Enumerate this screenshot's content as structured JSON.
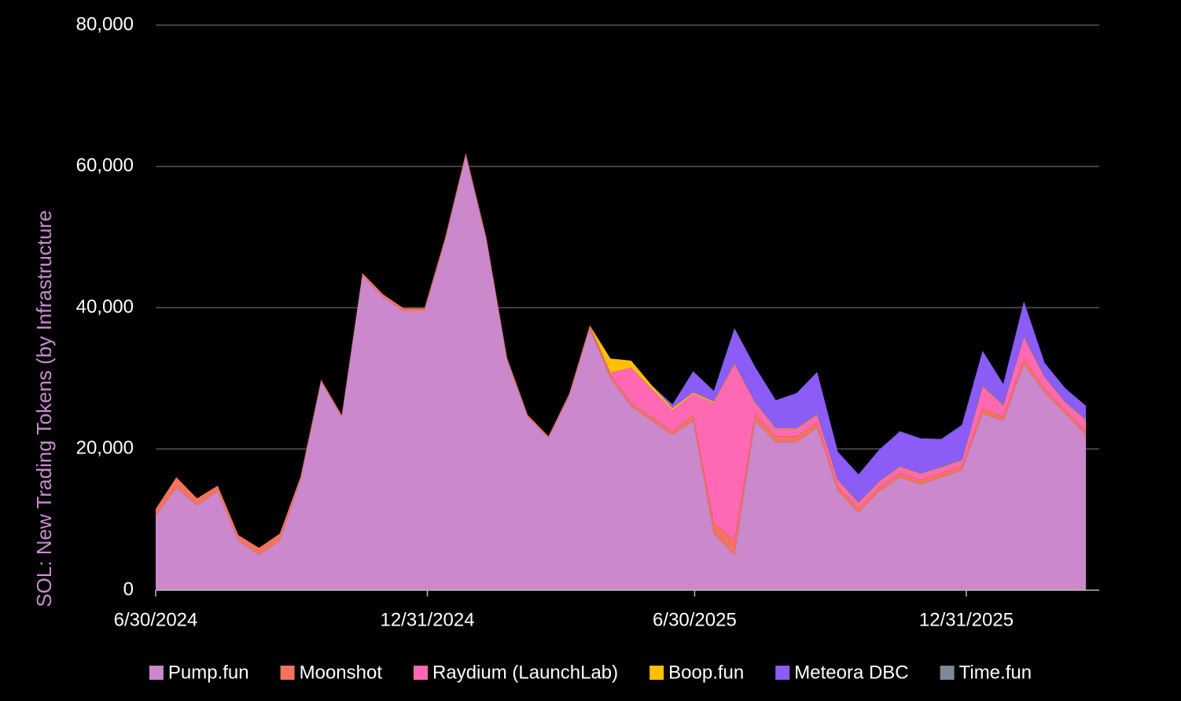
{
  "chart_data": {
    "type": "stacked-area",
    "y_label": "SOL: New Trading Tokens (by Infrastructure",
    "x": [
      "2024-06-30",
      "2024-07-14",
      "2024-07-28",
      "2024-08-11",
      "2024-08-25",
      "2024-09-08",
      "2024-09-22",
      "2024-10-06",
      "2024-10-20",
      "2024-11-03",
      "2024-11-17",
      "2024-12-01",
      "2024-12-15",
      "2024-12-29",
      "2025-01-12",
      "2025-01-26",
      "2025-02-09",
      "2025-02-23",
      "2025-03-09",
      "2025-03-23",
      "2025-04-06",
      "2025-04-20",
      "2025-05-04",
      "2025-05-18",
      "2025-06-01",
      "2025-06-15",
      "2025-06-29",
      "2025-07-13",
      "2025-07-27",
      "2025-08-10",
      "2025-08-24",
      "2025-09-07",
      "2025-09-21",
      "2025-10-05",
      "2025-10-19",
      "2025-11-02",
      "2025-11-16",
      "2025-11-30",
      "2025-12-14",
      "2025-12-28",
      "2026-01-11",
      "2026-01-25",
      "2026-02-08",
      "2026-02-22",
      "2026-03-08",
      "2026-03-22"
    ],
    "series": [
      {
        "name": "Pump.fun",
        "color": "#cc88cc",
        "values": [
          10500,
          14500,
          12000,
          14000,
          7000,
          5000,
          7000,
          15500,
          29500,
          24500,
          44500,
          41500,
          39500,
          39500,
          49500,
          61500,
          49500,
          32500,
          24500,
          21500,
          27500,
          37000,
          30000,
          26000,
          24000,
          22000,
          24000,
          8000,
          5000,
          24000,
          21000,
          21000,
          23000,
          14000,
          11000,
          14000,
          16000,
          15000,
          16000,
          17000,
          25000,
          24000,
          32000,
          28000,
          25000,
          22000
        ]
      },
      {
        "name": "Moonshot",
        "color": "#f4735e",
        "values": [
          1000,
          1500,
          1000,
          800,
          800,
          1000,
          1000,
          500,
          300,
          300,
          400,
          400,
          400,
          400,
          400,
          400,
          400,
          400,
          300,
          300,
          300,
          500,
          500,
          500,
          500,
          500,
          800,
          1500,
          2000,
          1000,
          800,
          800,
          800,
          700,
          600,
          600,
          600,
          600,
          600,
          600,
          800,
          600,
          800,
          600,
          500,
          500
        ]
      },
      {
        "name": "Raydium (LaunchLab)",
        "color": "#ff69b4",
        "values": [
          0,
          0,
          0,
          0,
          0,
          0,
          0,
          0,
          0,
          0,
          0,
          0,
          0,
          0,
          0,
          0,
          0,
          0,
          0,
          0,
          0,
          0,
          300,
          5000,
          4000,
          3000,
          3000,
          17000,
          25000,
          1500,
          1000,
          1000,
          1000,
          800,
          700,
          700,
          800,
          800,
          700,
          700,
          3000,
          1500,
          3000,
          1500,
          1000,
          1500
        ]
      },
      {
        "name": "Boop.fun",
        "color": "#ffc000",
        "values": [
          0,
          0,
          0,
          0,
          0,
          0,
          0,
          0,
          0,
          0,
          0,
          0,
          0,
          0,
          0,
          0,
          0,
          0,
          0,
          0,
          0,
          0,
          2000,
          1000,
          500,
          300,
          200,
          200,
          100,
          100,
          100,
          100,
          100,
          100,
          100,
          100,
          100,
          100,
          100,
          100,
          100,
          100,
          100,
          100,
          100,
          100
        ]
      },
      {
        "name": "Meteora DBC",
        "color": "#8b5cf6",
        "values": [
          0,
          0,
          0,
          0,
          0,
          0,
          0,
          0,
          0,
          0,
          0,
          0,
          0,
          0,
          0,
          0,
          0,
          0,
          0,
          0,
          0,
          0,
          0,
          0,
          0,
          500,
          3000,
          1500,
          5000,
          5000,
          4000,
          5000,
          6000,
          4000,
          4000,
          4500,
          5000,
          5000,
          4000,
          5000,
          5000,
          3000,
          5000,
          2000,
          2000,
          2000
        ]
      },
      {
        "name": "Time.fun",
        "color": "#7a8a99",
        "values": [
          0,
          0,
          0,
          0,
          0,
          0,
          0,
          0,
          0,
          0,
          0,
          0,
          0,
          0,
          0,
          0,
          0,
          0,
          0,
          0,
          0,
          0,
          0,
          0,
          0,
          0,
          0,
          0,
          0,
          0,
          0,
          0,
          0,
          0,
          0,
          0,
          0,
          0,
          0,
          0,
          0,
          0,
          0,
          0,
          0,
          0
        ]
      }
    ],
    "xlim": [
      "2024-06-30",
      "2026-03-31"
    ],
    "xticks": [
      {
        "value": "2024-06-30",
        "label": "6/30/2024"
      },
      {
        "value": "2024-12-31",
        "label": "12/31/2024"
      },
      {
        "value": "2025-06-30",
        "label": "6/30/2025"
      },
      {
        "value": "2025-12-31",
        "label": "12/31/2025"
      }
    ],
    "ylim": [
      0,
      80000
    ],
    "yticks": [
      0,
      {
        "value": 20000,
        "label": "20,000"
      },
      {
        "value": 40000,
        "label": "40,000"
      },
      {
        "value": 60000,
        "label": "60,000"
      },
      {
        "value": 80000,
        "label": "80,000"
      }
    ],
    "grid": true,
    "legend": "bottom"
  }
}
